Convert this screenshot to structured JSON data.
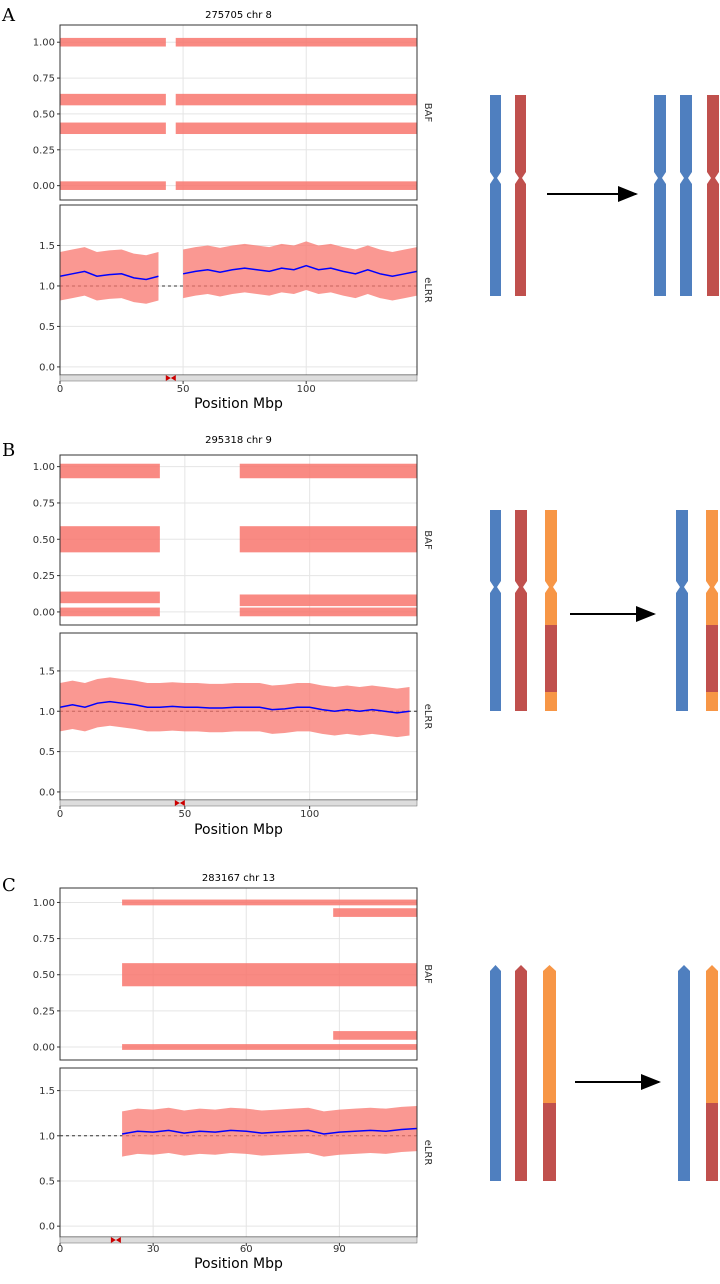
{
  "chart_data": [
    {
      "type": "scatter",
      "panel_label": "A",
      "title": "275705 chr 8",
      "xlabel": "Position Mbp",
      "point_color": "#f8766d",
      "xlim": [
        0,
        145
      ],
      "xticks": [
        0,
        50,
        100
      ],
      "centromere": 45,
      "facets": [
        {
          "strip": "BAF",
          "ylim": [
            -0.1,
            1.12
          ],
          "yticks": [
            {
              "value": 0,
              "label": "0.00"
            },
            {
              "value": 0.25,
              "label": "0.25"
            },
            {
              "value": 0.5,
              "label": "0.50"
            },
            {
              "value": 0.75,
              "label": "0.75"
            },
            {
              "value": 1,
              "label": "1.00"
            }
          ],
          "bands": [
            {
              "y": 1,
              "x": [
                0,
                43
              ],
              "spread": 0.03
            },
            {
              "y": 1,
              "x": [
                47,
                145
              ],
              "spread": 0.03
            },
            {
              "y": 0.6,
              "x": [
                0,
                43
              ],
              "spread": 0.04
            },
            {
              "y": 0.6,
              "x": [
                47,
                145
              ],
              "spread": 0.04
            },
            {
              "y": 0.4,
              "x": [
                0,
                43
              ],
              "spread": 0.04
            },
            {
              "y": 0.4,
              "x": [
                47,
                145
              ],
              "spread": 0.04
            },
            {
              "y": 0,
              "x": [
                0,
                43
              ],
              "spread": 0.03
            },
            {
              "y": 0,
              "x": [
                47,
                145
              ],
              "spread": 0.03
            }
          ]
        },
        {
          "strip": "eLRR",
          "ylim": [
            -0.1,
            2.0
          ],
          "color": "#0000ff",
          "spread": 0.3,
          "ref": 1,
          "yticks": [
            {
              "value": 0,
              "label": "0.0"
            },
            {
              "value": 0.5,
              "label": "0.5"
            },
            {
              "value": 1,
              "label": "1.0"
            },
            {
              "value": 1.5,
              "label": "1.5"
            }
          ],
          "x": [
            0,
            5,
            10,
            15,
            20,
            25,
            30,
            35,
            40,
            45,
            50,
            55,
            60,
            65,
            70,
            75,
            80,
            85,
            90,
            95,
            100,
            105,
            110,
            115,
            120,
            125,
            130,
            135,
            140,
            145
          ],
          "values": [
            1.12,
            1.15,
            1.18,
            1.12,
            1.14,
            1.15,
            1.1,
            1.08,
            1.12,
            null,
            1.15,
            1.18,
            1.2,
            1.17,
            1.2,
            1.22,
            1.2,
            1.18,
            1.22,
            1.2,
            1.25,
            1.2,
            1.22,
            1.18,
            1.15,
            1.2,
            1.15,
            1.12,
            1.15,
            1.18
          ]
        }
      ]
    },
    {
      "type": "scatter",
      "panel_label": "B",
      "title": "295318 chr 9",
      "xlabel": "Position Mbp",
      "point_color": "#f8766d",
      "xlim": [
        0,
        143
      ],
      "xticks": [
        0,
        50,
        100
      ],
      "centromere": 48,
      "facets": [
        {
          "strip": "BAF",
          "ylim": [
            -0.09,
            1.08
          ],
          "yticks": [
            {
              "value": 0,
              "label": "0.00"
            },
            {
              "value": 0.25,
              "label": "0.25"
            },
            {
              "value": 0.5,
              "label": "0.50"
            },
            {
              "value": 0.75,
              "label": "0.75"
            },
            {
              "value": 1,
              "label": "1.00"
            }
          ],
          "bands": [
            {
              "y": 0.97,
              "x": [
                0,
                40
              ],
              "spread": 0.05
            },
            {
              "y": 0.97,
              "x": [
                72,
                143
              ],
              "spread": 0.05
            },
            {
              "y": 0.5,
              "x": [
                0,
                40
              ],
              "spread": 0.09
            },
            {
              "y": 0.5,
              "x": [
                72,
                143
              ],
              "spread": 0.09
            },
            {
              "y": 0.1,
              "x": [
                0,
                40
              ],
              "spread": 0.04
            },
            {
              "y": 0.08,
              "x": [
                72,
                143
              ],
              "spread": 0.04
            },
            {
              "y": 0,
              "x": [
                0,
                40
              ],
              "spread": 0.03
            },
            {
              "y": 0,
              "x": [
                72,
                143
              ],
              "spread": 0.03
            }
          ]
        },
        {
          "strip": "eLRR",
          "ylim": [
            -0.1,
            1.97
          ],
          "color": "#0000ff",
          "spread": 0.3,
          "ref": 1,
          "yticks": [
            {
              "value": 0,
              "label": "0.0"
            },
            {
              "value": 0.5,
              "label": "0.5"
            },
            {
              "value": 1,
              "label": "1.0"
            },
            {
              "value": 1.5,
              "label": "1.5"
            }
          ],
          "x": [
            0,
            5,
            10,
            15,
            20,
            25,
            30,
            35,
            40,
            45,
            50,
            55,
            60,
            65,
            70,
            75,
            80,
            85,
            90,
            95,
            100,
            105,
            110,
            115,
            120,
            125,
            130,
            135,
            140
          ],
          "values": [
            1.05,
            1.08,
            1.05,
            1.1,
            1.12,
            1.1,
            1.08,
            1.05,
            1.05,
            1.06,
            1.05,
            1.05,
            1.04,
            1.04,
            1.05,
            1.05,
            1.05,
            1.02,
            1.03,
            1.05,
            1.05,
            1.02,
            1.0,
            1.02,
            1.0,
            1.02,
            1.0,
            0.98,
            1.0
          ]
        }
      ]
    },
    {
      "type": "scatter",
      "panel_label": "C",
      "title": "283167 chr 13",
      "xlabel": "Position Mbp",
      "point_color": "#f8766d",
      "xlim": [
        0,
        115
      ],
      "xticks": [
        0,
        30,
        60,
        90
      ],
      "centromere": 18,
      "facets": [
        {
          "strip": "BAF",
          "ylim": [
            -0.09,
            1.1
          ],
          "yticks": [
            {
              "value": 0,
              "label": "0.00"
            },
            {
              "value": 0.25,
              "label": "0.25"
            },
            {
              "value": 0.5,
              "label": "0.50"
            },
            {
              "value": 0.75,
              "label": "0.75"
            },
            {
              "value": 1,
              "label": "1.00"
            }
          ],
          "bands": [
            {
              "y": 1,
              "x": [
                20,
                115
              ],
              "spread": 0.02
            },
            {
              "y": 0.93,
              "x": [
                88,
                115
              ],
              "spread": 0.03
            },
            {
              "y": 0.5,
              "x": [
                20,
                115
              ],
              "spread": 0.08
            },
            {
              "y": 0.08,
              "x": [
                88,
                115
              ],
              "spread": 0.03
            },
            {
              "y": 0,
              "x": [
                20,
                115
              ],
              "spread": 0.02
            }
          ]
        },
        {
          "strip": "eLRR",
          "ylim": [
            -0.12,
            1.75
          ],
          "color": "#0000ff",
          "spread": 0.25,
          "ref": 1,
          "yticks": [
            {
              "value": 0,
              "label": "0.0"
            },
            {
              "value": 0.5,
              "label": "0.5"
            },
            {
              "value": 1,
              "label": "1.0"
            },
            {
              "value": 1.5,
              "label": "1.5"
            }
          ],
          "x": [
            20,
            25,
            30,
            35,
            40,
            45,
            50,
            55,
            60,
            65,
            70,
            75,
            80,
            85,
            90,
            95,
            100,
            105,
            110,
            115
          ],
          "values": [
            1.02,
            1.05,
            1.04,
            1.06,
            1.03,
            1.05,
            1.04,
            1.06,
            1.05,
            1.03,
            1.04,
            1.05,
            1.06,
            1.02,
            1.04,
            1.05,
            1.06,
            1.05,
            1.07,
            1.08
          ]
        }
      ]
    }
  ]
}
